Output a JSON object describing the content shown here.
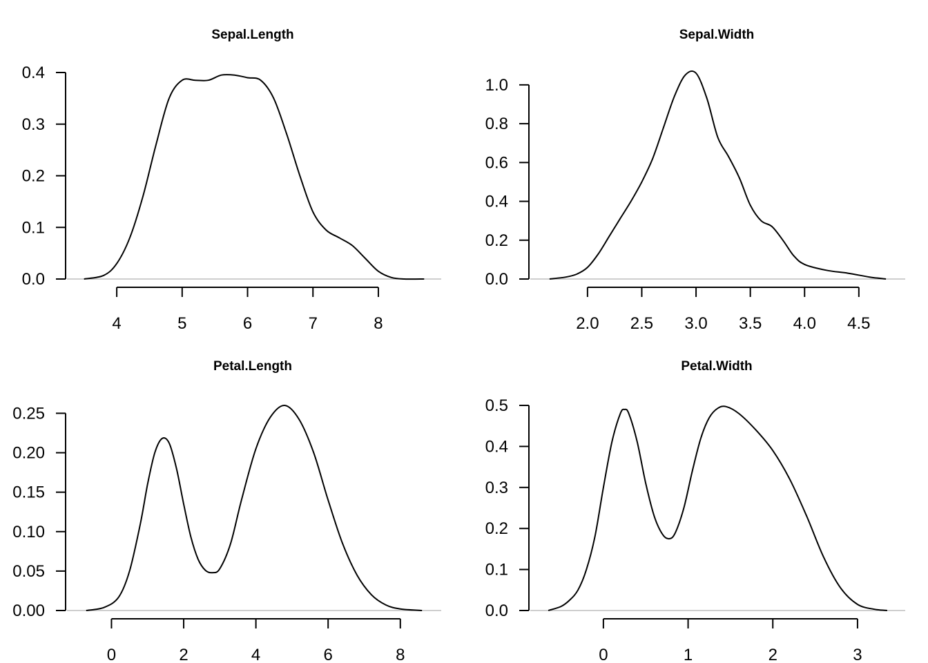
{
  "chart_data": [
    {
      "type": "line",
      "title": "Sepal.Length",
      "xlabel": "",
      "ylabel": "",
      "xlim": [
        3.45,
        8.75
      ],
      "ylim": [
        0,
        0.4
      ],
      "xticks": [
        "4",
        "5",
        "6",
        "7",
        "8"
      ],
      "yticks": [
        "0.0",
        "0.1",
        "0.2",
        "0.3",
        "0.4"
      ],
      "grid": false,
      "x": [
        3.5,
        3.8,
        4.0,
        4.2,
        4.4,
        4.6,
        4.8,
        5.0,
        5.2,
        5.4,
        5.6,
        5.8,
        6.0,
        6.2,
        6.4,
        6.6,
        6.8,
        7.0,
        7.2,
        7.4,
        7.6,
        7.8,
        8.0,
        8.2,
        8.4,
        8.7
      ],
      "y": [
        0.0,
        0.007,
        0.03,
        0.08,
        0.16,
        0.26,
        0.35,
        0.385,
        0.385,
        0.385,
        0.395,
        0.395,
        0.39,
        0.385,
        0.35,
        0.28,
        0.2,
        0.13,
        0.095,
        0.08,
        0.065,
        0.04,
        0.015,
        0.003,
        0.0,
        0.0
      ]
    },
    {
      "type": "line",
      "title": "Sepal.Width",
      "xlabel": "",
      "ylabel": "",
      "xlim": [
        1.6,
        4.8
      ],
      "ylim": [
        0,
        1.06
      ],
      "xticks": [
        "2.0",
        "2.5",
        "3.0",
        "3.5",
        "4.0",
        "4.5"
      ],
      "yticks": [
        "0.0",
        "0.2",
        "0.4",
        "0.6",
        "0.8",
        "1.0"
      ],
      "grid": false,
      "x": [
        1.65,
        1.8,
        1.9,
        2.0,
        2.1,
        2.2,
        2.3,
        2.4,
        2.5,
        2.6,
        2.7,
        2.8,
        2.9,
        3.0,
        3.1,
        3.2,
        3.3,
        3.4,
        3.5,
        3.6,
        3.7,
        3.8,
        3.9,
        4.0,
        4.2,
        4.4,
        4.6,
        4.75
      ],
      "y": [
        0.0,
        0.01,
        0.025,
        0.06,
        0.13,
        0.22,
        0.31,
        0.4,
        0.5,
        0.62,
        0.78,
        0.94,
        1.05,
        1.06,
        0.93,
        0.73,
        0.63,
        0.52,
        0.38,
        0.3,
        0.27,
        0.2,
        0.12,
        0.075,
        0.045,
        0.03,
        0.01,
        0.0
      ]
    },
    {
      "type": "line",
      "title": "Petal.Length",
      "xlabel": "",
      "ylabel": "",
      "xlim": [
        -0.85,
        8.75
      ],
      "ylim": [
        0,
        0.26
      ],
      "xticks": [
        "0",
        "2",
        "4",
        "6",
        "8"
      ],
      "yticks": [
        "0.00",
        "0.05",
        "0.10",
        "0.15",
        "0.20",
        "0.25"
      ],
      "grid": false,
      "x": [
        -0.7,
        -0.2,
        0.2,
        0.5,
        0.8,
        1.0,
        1.2,
        1.4,
        1.6,
        1.8,
        2.0,
        2.2,
        2.4,
        2.6,
        2.8,
        3.0,
        3.3,
        3.6,
        4.0,
        4.4,
        4.8,
        5.2,
        5.6,
        6.0,
        6.4,
        6.8,
        7.2,
        7.6,
        8.0,
        8.6
      ],
      "y": [
        0.0,
        0.004,
        0.017,
        0.05,
        0.11,
        0.16,
        0.2,
        0.218,
        0.212,
        0.18,
        0.135,
        0.093,
        0.065,
        0.051,
        0.048,
        0.053,
        0.085,
        0.14,
        0.205,
        0.245,
        0.26,
        0.242,
        0.2,
        0.14,
        0.085,
        0.045,
        0.02,
        0.007,
        0.002,
        0.0
      ]
    },
    {
      "type": "line",
      "title": "Petal.Width",
      "xlabel": "",
      "ylabel": "",
      "xlim": [
        -0.7,
        3.4
      ],
      "ylim": [
        0,
        0.5
      ],
      "xticks": [
        "0",
        "1",
        "2",
        "3"
      ],
      "yticks": [
        "0.0",
        "0.1",
        "0.2",
        "0.3",
        "0.4",
        "0.5"
      ],
      "grid": false,
      "x": [
        -0.65,
        -0.5,
        -0.4,
        -0.3,
        -0.2,
        -0.1,
        0.0,
        0.1,
        0.2,
        0.25,
        0.3,
        0.4,
        0.5,
        0.6,
        0.7,
        0.78,
        0.85,
        0.95,
        1.05,
        1.15,
        1.25,
        1.35,
        1.45,
        1.6,
        1.8,
        2.0,
        2.2,
        2.4,
        2.6,
        2.8,
        3.0,
        3.2,
        3.35
      ],
      "y": [
        0.0,
        0.01,
        0.025,
        0.05,
        0.1,
        0.18,
        0.3,
        0.41,
        0.48,
        0.49,
        0.48,
        0.41,
        0.31,
        0.23,
        0.185,
        0.175,
        0.19,
        0.25,
        0.34,
        0.42,
        0.47,
        0.493,
        0.497,
        0.48,
        0.44,
        0.39,
        0.32,
        0.23,
        0.13,
        0.055,
        0.015,
        0.003,
        0.0
      ]
    }
  ]
}
